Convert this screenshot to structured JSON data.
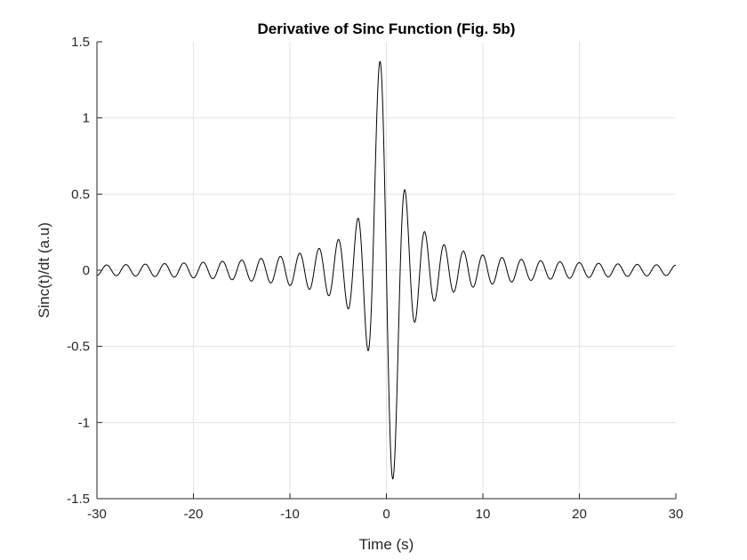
{
  "chart_data": {
    "type": "line",
    "title": "Derivative of Sinc Function (Fig. 5b)",
    "xlabel": "Time (s)",
    "ylabel": "Sinc(t)/dt (a.u)",
    "xlim": [
      -30,
      30
    ],
    "ylim": [
      -1.5,
      1.5
    ],
    "xticks": [
      -30,
      -20,
      -10,
      0,
      10,
      20,
      30
    ],
    "xtick_labels": [
      "-30",
      "-20",
      "-10",
      "0",
      "10",
      "20",
      "30"
    ],
    "yticks": [
      -1.5,
      -1,
      -0.5,
      0,
      0.5,
      1,
      1.5
    ],
    "ytick_labels": [
      "-1.5",
      "-1",
      "-0.5",
      "0",
      "0.5",
      "1",
      "1.5"
    ],
    "grid": true,
    "legend": "none",
    "series": [
      {
        "function": "d/dt sinc(t)",
        "line_color": "#000000",
        "t_range": [
          -30,
          30
        ],
        "extrema": [
          {
            "t": -0.82,
            "value": 1.37
          },
          {
            "t": 0.82,
            "value": -1.37
          },
          {
            "t": -1.96,
            "value": -0.52
          },
          {
            "t": 1.96,
            "value": 0.52
          },
          {
            "t": -3.0,
            "value": 0.34
          },
          {
            "t": 3.0,
            "value": -0.34
          },
          {
            "t": -4.0,
            "value": -0.25
          },
          {
            "t": 4.0,
            "value": 0.25
          },
          {
            "t": -5.0,
            "value": 0.2
          },
          {
            "t": 5.0,
            "value": -0.2
          }
        ]
      }
    ]
  },
  "colors": {
    "background": "#ffffff",
    "axes": "#262626",
    "grid": "#e3e3e3",
    "line": "#000000"
  }
}
